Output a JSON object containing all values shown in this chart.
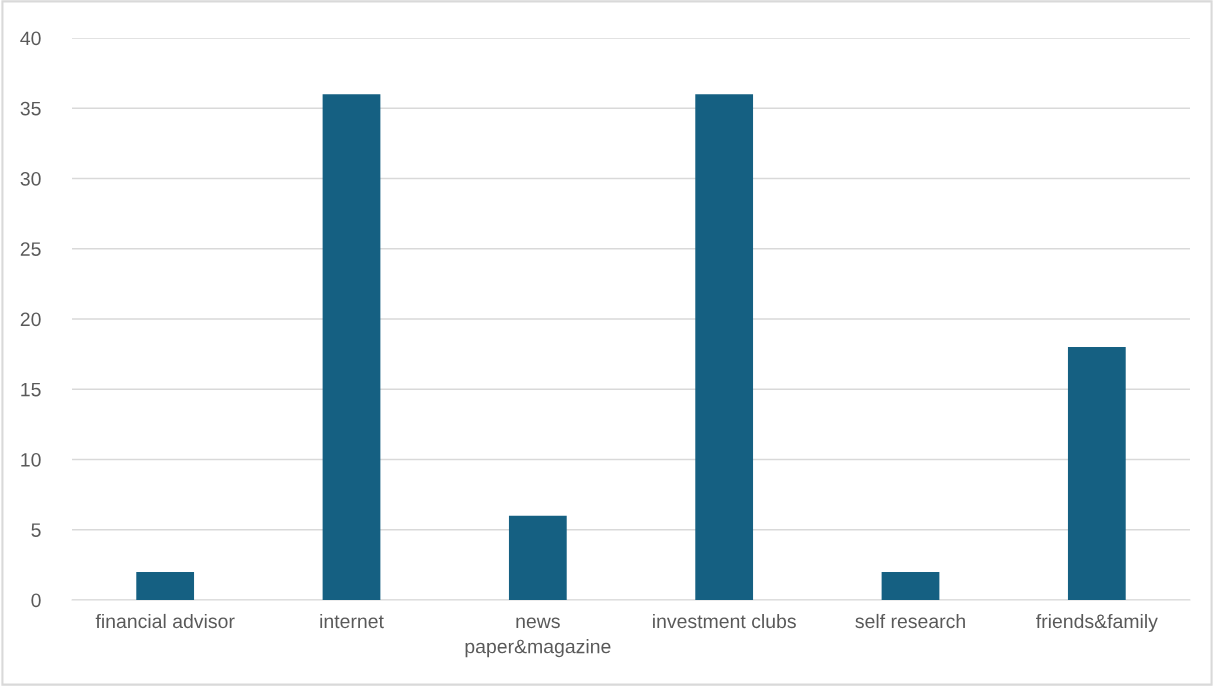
{
  "chart_data": {
    "type": "bar",
    "categories": [
      "financial advisor",
      "internet",
      "news\npaper&magazine",
      "investment clubs",
      "self research",
      "friends&family"
    ],
    "values": [
      2,
      36,
      6,
      36,
      2,
      18
    ],
    "color": "#156082",
    "ylim": [
      0,
      40
    ],
    "yticks": [
      0,
      5,
      10,
      15,
      20,
      25,
      30,
      35,
      40
    ],
    "grid": "y",
    "legend": false
  }
}
